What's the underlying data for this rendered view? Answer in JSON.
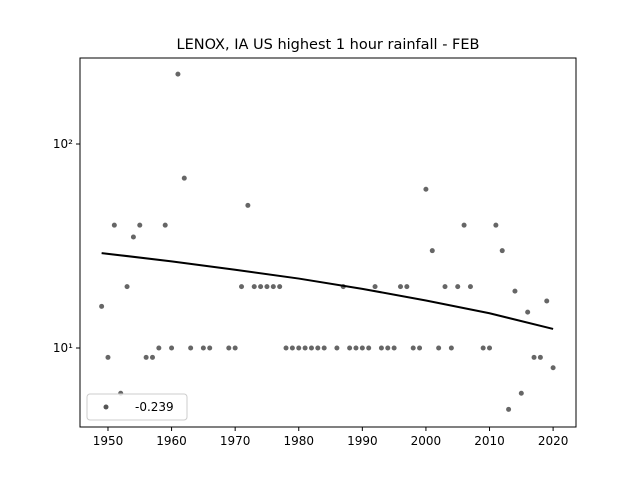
{
  "chart_data": {
    "type": "scatter",
    "title": "LENOX, IA US highest 1 hour rainfall - FEB",
    "series": [
      {
        "name": "-0.239",
        "color": "#555555",
        "x": [
          1949,
          1950,
          1951,
          1952,
          1953,
          1954,
          1955,
          1956,
          1957,
          1958,
          1959,
          1960,
          1961,
          1962,
          1963,
          1965,
          1966,
          1969,
          1970,
          1971,
          1972,
          1973,
          1974,
          1975,
          1976,
          1977,
          1978,
          1979,
          1980,
          1981,
          1982,
          1983,
          1984,
          1986,
          1987,
          1988,
          1989,
          1990,
          1991,
          1992,
          1993,
          1994,
          1995,
          1996,
          1997,
          1998,
          1999,
          2000,
          2001,
          2002,
          2003,
          2004,
          2005,
          2006,
          2007,
          2009,
          2010,
          2011,
          2012,
          2013,
          2014,
          2015,
          2016,
          2017,
          2018,
          2019,
          2020
        ],
        "values": [
          16,
          9,
          40,
          6,
          20,
          35,
          40,
          9,
          9,
          10,
          40,
          10,
          220,
          68,
          10,
          10,
          10,
          10,
          10,
          20,
          50,
          20,
          20,
          20,
          20,
          20,
          10,
          10,
          10,
          10,
          10,
          10,
          10,
          10,
          20,
          10,
          10,
          10,
          10,
          20,
          10,
          10,
          10,
          20,
          20,
          10,
          10,
          60,
          30,
          10,
          20,
          10,
          20,
          40,
          20,
          10,
          10,
          40,
          30,
          5,
          19,
          6,
          15,
          9,
          9,
          17,
          8
        ]
      },
      {
        "type": "line",
        "color": "#000000",
        "x": [
          1949,
          1960,
          1970,
          1980,
          1990,
          2000,
          2010,
          2020
        ],
        "values": [
          29.2,
          26.6,
          24.2,
          21.9,
          19.5,
          17.1,
          14.8,
          12.4
        ]
      }
    ],
    "xlim": [
      1945.6,
      2023.6
    ],
    "xticks": [
      1950,
      1960,
      1970,
      1980,
      1990,
      2000,
      2010,
      2020
    ],
    "ylim": [
      4.1,
      264
    ],
    "yscale": "log",
    "yticks": [
      {
        "value": 10,
        "label": "10¹"
      },
      {
        "value": 100,
        "label": "10²"
      }
    ],
    "legend": "lower left"
  }
}
